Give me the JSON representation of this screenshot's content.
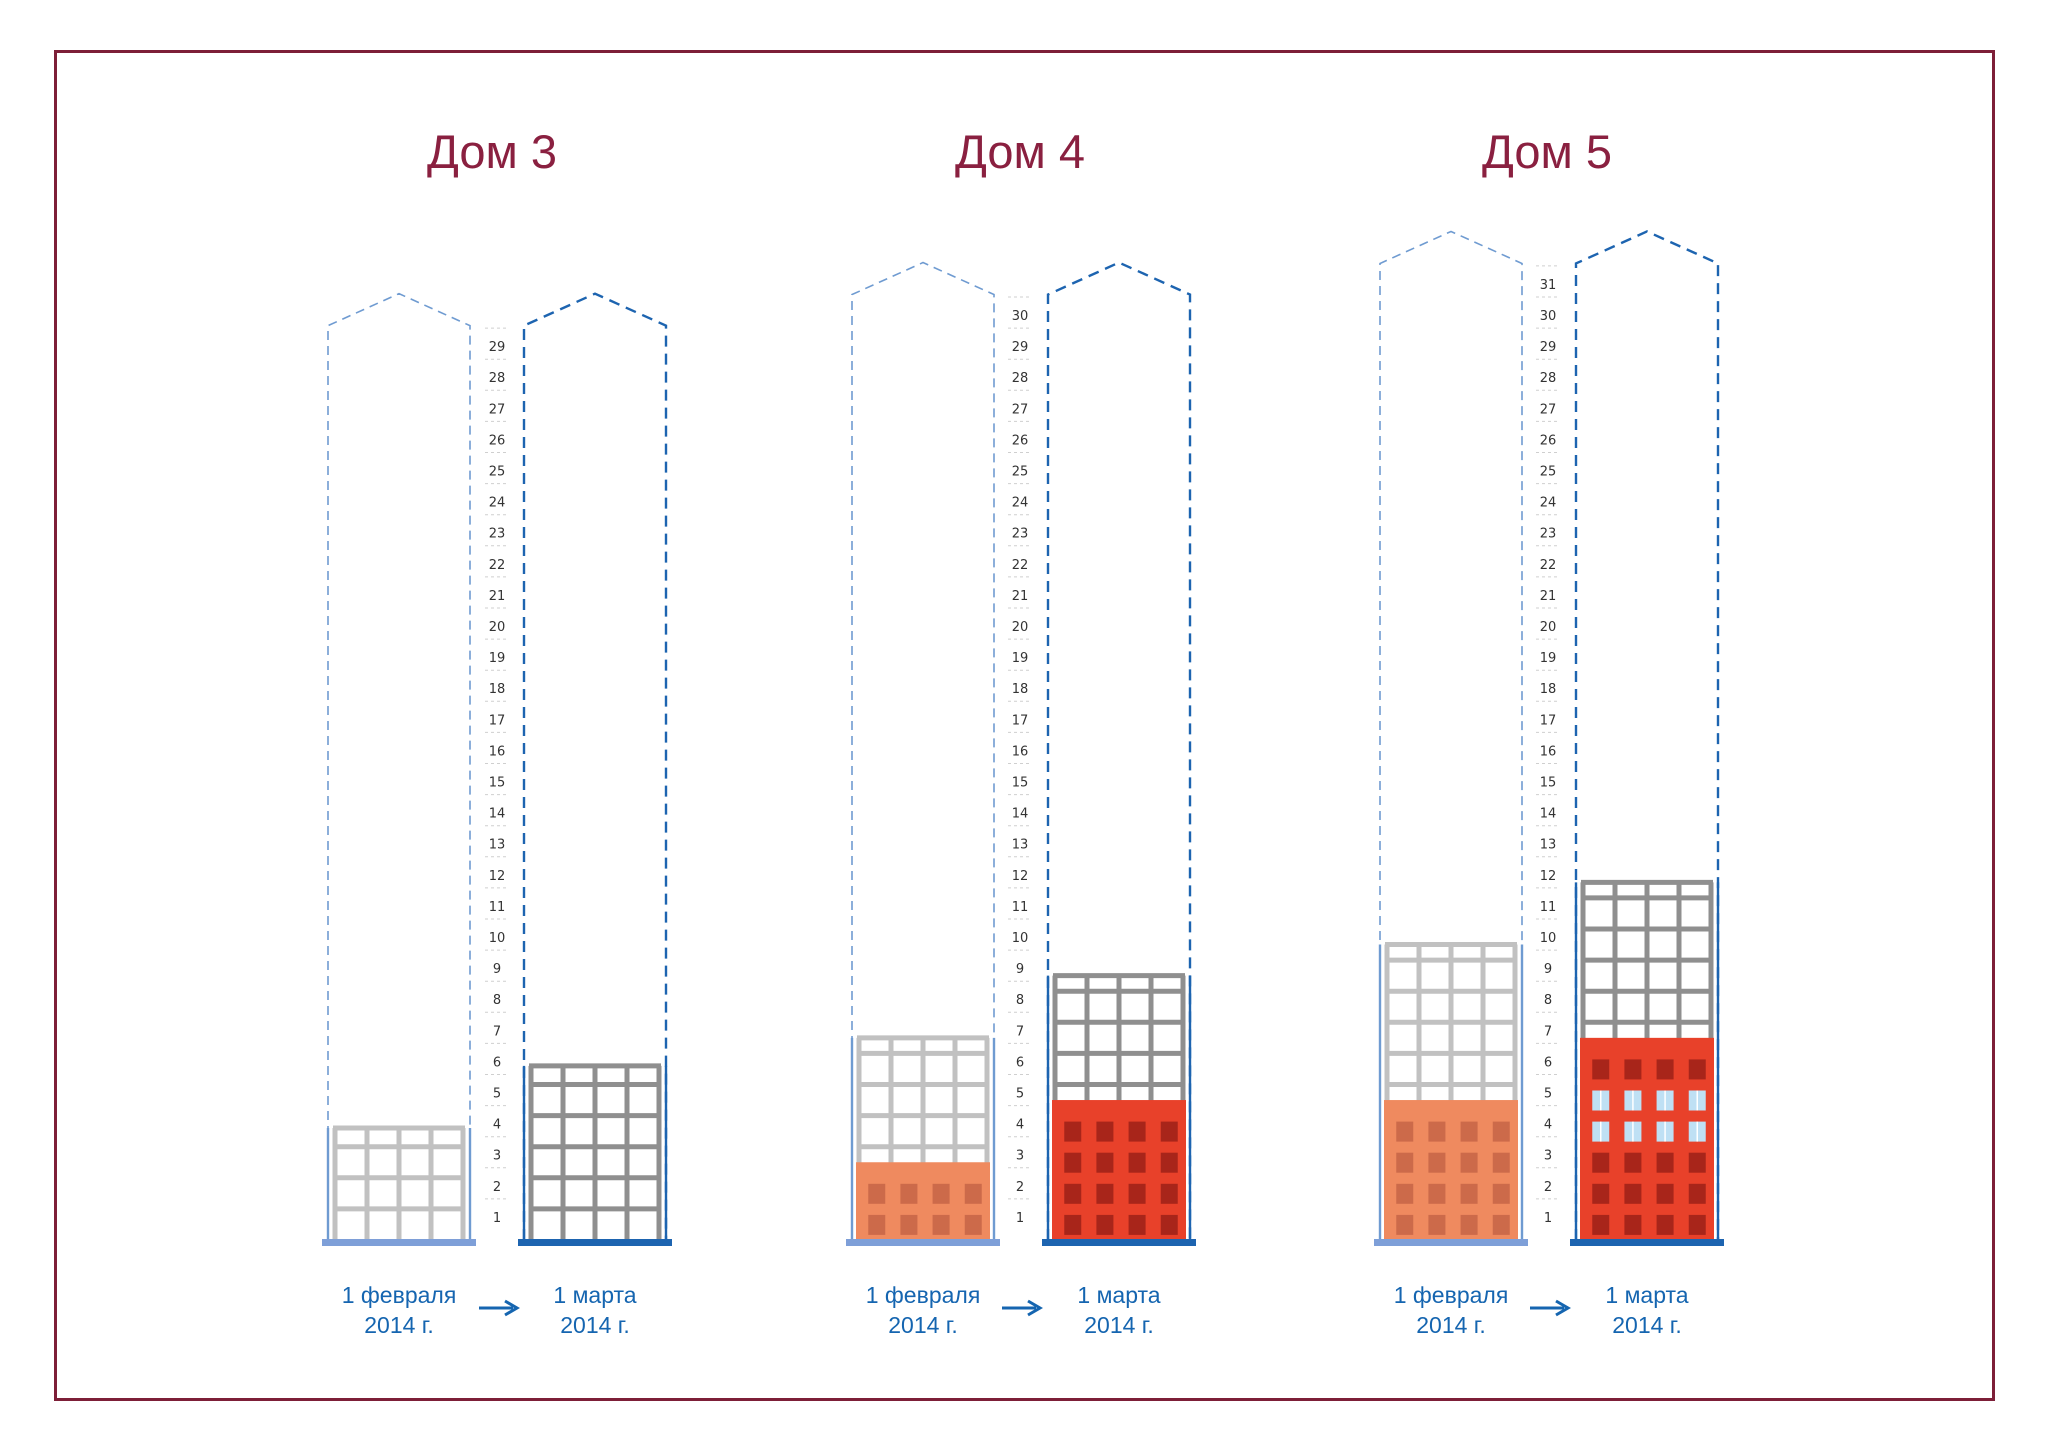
{
  "colors": {
    "frame": "#7d1f38",
    "title": "#8a2040",
    "caption": "#1565b0",
    "outline_before": "#6f9bd1",
    "outline_after": "#1d64b0",
    "base_before": "#7e9fd8",
    "base_after": "#1d64b0",
    "frame_before": "#c1c1c1",
    "frame_after": "#8f8f8f",
    "brick_before": "#ef8a5f",
    "brick_before_window": "#cc6a4a",
    "brick_after": "#e8412a",
    "brick_after_window": "#a8251a",
    "glass_window": "#bfe0f4",
    "tick_color": "#333333"
  },
  "buildings": [
    {
      "title": "Дом 3",
      "total_floors": 29,
      "floor_labels": [
        "1",
        "2",
        "3",
        "4",
        "5",
        "6",
        "7",
        "8",
        "9",
        "10",
        "11",
        "12",
        "13",
        "14",
        "15",
        "16",
        "17",
        "18",
        "19",
        "20",
        "21",
        "22",
        "23",
        "24",
        "25",
        "26",
        "27",
        "28",
        "29"
      ],
      "before": {
        "caption_line1": "1 февраля",
        "caption_line2": "2014 г.",
        "frame_floors": 3.6,
        "brick_floors": 0,
        "glazed_rows": []
      },
      "after": {
        "caption_line1": "1 марта",
        "caption_line2": "2014 г.",
        "frame_floors": 5.6,
        "brick_floors": 0,
        "glazed_rows": []
      }
    },
    {
      "title": "Дом 4",
      "total_floors": 30,
      "floor_labels": [
        "1",
        "2",
        "3",
        "4",
        "5",
        "6",
        "7",
        "8",
        "9",
        "10",
        "11",
        "12",
        "13",
        "14",
        "15",
        "16",
        "17",
        "18",
        "19",
        "20",
        "21",
        "22",
        "23",
        "24",
        "25",
        "26",
        "27",
        "28",
        "29",
        "30"
      ],
      "before": {
        "caption_line1": "1 февраля",
        "caption_line2": "2014 г.",
        "frame_floors": 6.5,
        "brick_floors": 2.5,
        "glazed_rows": []
      },
      "after": {
        "caption_line1": "1 марта",
        "caption_line2": "2014 г.",
        "frame_floors": 8.5,
        "brick_floors": 4.5,
        "glazed_rows": []
      }
    },
    {
      "title": "Дом 5",
      "total_floors": 31,
      "floor_labels": [
        "1",
        "2",
        "3",
        "4",
        "5",
        "6",
        "7",
        "8",
        "9",
        "10",
        "11",
        "12",
        "13",
        "14",
        "15",
        "16",
        "17",
        "18",
        "19",
        "20",
        "21",
        "22",
        "23",
        "24",
        "25",
        "26",
        "27",
        "28",
        "29",
        "30",
        "31"
      ],
      "before": {
        "caption_line1": "1 февраля",
        "caption_line2": "2014 г.",
        "frame_floors": 9.5,
        "brick_floors": 4.5,
        "glazed_rows": []
      },
      "after": {
        "caption_line1": "1 марта",
        "caption_line2": "2014 г.",
        "frame_floors": 11.5,
        "brick_floors": 6.5,
        "glazed_rows": [
          3,
          4
        ]
      }
    }
  ]
}
